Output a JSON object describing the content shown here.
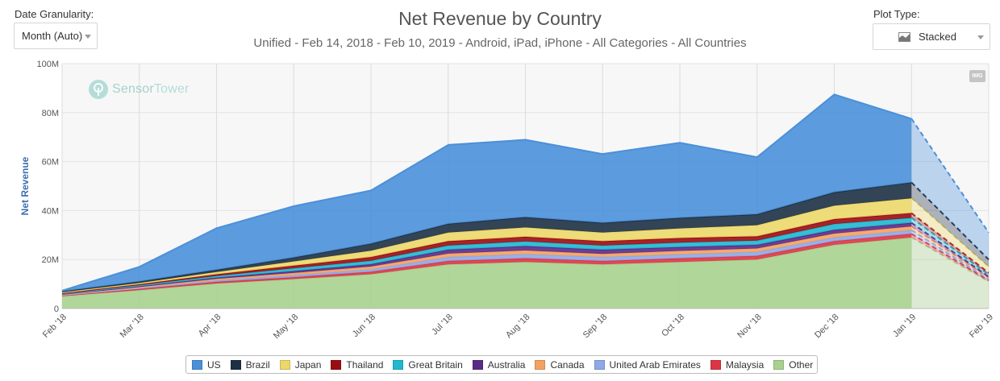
{
  "controls": {
    "granularity_label": "Date Granularity:",
    "granularity_value": "Month (Auto)",
    "plot_type_label": "Plot Type:",
    "plot_type_value": "Stacked"
  },
  "header": {
    "title": "Net Revenue by Country",
    "subtitle": "Unified - Feb 14, 2018 - Feb 10, 2019 - Android, iPad, iPhone - All Categories - All Countries"
  },
  "watermark": {
    "brand_a": "Sensor",
    "brand_b": "Tower"
  },
  "export_button": "IMG",
  "chart_data": {
    "type": "area",
    "stacked": true,
    "title": "Net Revenue by Country",
    "ylabel": "Net Revenue",
    "xlabel": "",
    "ylim": [
      0,
      100
    ],
    "y_unit": "M",
    "y_ticks": [
      "0",
      "20M",
      "40M",
      "60M",
      "80M",
      "100M"
    ],
    "categories": [
      "Feb '18",
      "Mar '18",
      "Apr '18",
      "May '18",
      "Jun '18",
      "Jul '18",
      "Aug '18",
      "Sep '18",
      "Oct '18",
      "Nov '18",
      "Dec '18",
      "Jan '19",
      "Feb '19"
    ],
    "projected_from_index": 11,
    "series": [
      {
        "name": "Other",
        "color": "#a9d18e",
        "values": [
          5.0,
          7.5,
          10.2,
          12.0,
          14.0,
          18.0,
          19.0,
          18.0,
          19.0,
          20.0,
          26.0,
          29.0,
          11.0
        ]
      },
      {
        "name": "Malaysia",
        "color": "#dc3545",
        "values": [
          0.3,
          0.5,
          0.7,
          0.8,
          1.0,
          1.4,
          1.5,
          1.4,
          1.5,
          1.5,
          1.5,
          1.5,
          0.5
        ]
      },
      {
        "name": "United Arab Emirates",
        "color": "#8fa9e6",
        "values": [
          0.2,
          0.4,
          0.6,
          0.8,
          1.0,
          1.6,
          1.7,
          1.6,
          1.6,
          1.6,
          1.5,
          1.5,
          0.5
        ]
      },
      {
        "name": "Canada",
        "color": "#f4a261",
        "values": [
          0.2,
          0.4,
          0.6,
          0.9,
          1.1,
          1.4,
          1.5,
          1.3,
          1.4,
          1.4,
          1.6,
          1.5,
          0.5
        ]
      },
      {
        "name": "Australia",
        "color": "#5b2a86",
        "values": [
          0.2,
          0.3,
          0.5,
          0.8,
          1.0,
          1.6,
          1.8,
          1.7,
          1.6,
          1.5,
          1.5,
          1.5,
          0.5
        ]
      },
      {
        "name": "Great Britain",
        "color": "#1fb8cf",
        "values": [
          0.2,
          0.4,
          0.7,
          1.1,
          1.4,
          1.7,
          1.9,
          1.7,
          1.8,
          1.7,
          2.4,
          2.0,
          0.8
        ]
      },
      {
        "name": "Thailand",
        "color": "#9b0c12",
        "values": [
          0.2,
          0.4,
          0.7,
          1.1,
          1.5,
          1.8,
          1.9,
          1.8,
          1.9,
          1.8,
          2.0,
          2.0,
          0.8
        ]
      },
      {
        "name": "Japan",
        "color": "#ecd86a",
        "values": [
          0.3,
          0.5,
          0.9,
          1.7,
          2.6,
          3.5,
          3.8,
          3.5,
          3.9,
          4.5,
          5.5,
          6.0,
          2.4
        ]
      },
      {
        "name": "Brazil",
        "color": "#1d3044",
        "values": [
          0.4,
          0.6,
          0.9,
          1.6,
          2.9,
          3.6,
          4.2,
          4.0,
          4.3,
          4.5,
          5.5,
          6.5,
          3.0
        ]
      },
      {
        "name": "US",
        "color": "#4a90d9",
        "values": [
          0.3,
          6.0,
          17.0,
          21.0,
          21.7,
          32.2,
          31.6,
          28.1,
          30.7,
          23.3,
          39.9,
          26.0,
          11.0
        ]
      }
    ]
  },
  "legend": [
    {
      "name": "US",
      "color": "#4a90d9"
    },
    {
      "name": "Brazil",
      "color": "#1d3044"
    },
    {
      "name": "Japan",
      "color": "#ecd86a"
    },
    {
      "name": "Thailand",
      "color": "#9b0c12"
    },
    {
      "name": "Great Britain",
      "color": "#1fb8cf"
    },
    {
      "name": "Australia",
      "color": "#5b2a86"
    },
    {
      "name": "Canada",
      "color": "#f4a261"
    },
    {
      "name": "United Arab Emirates",
      "color": "#8fa9e6"
    },
    {
      "name": "Malaysia",
      "color": "#dc3545"
    },
    {
      "name": "Other",
      "color": "#a9d18e"
    }
  ]
}
